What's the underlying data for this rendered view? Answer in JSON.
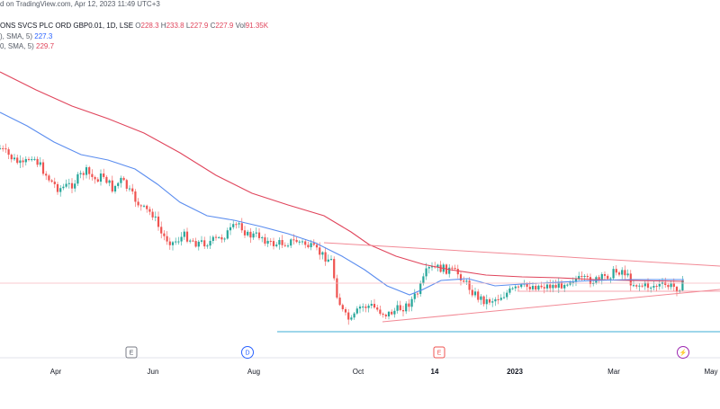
{
  "header": {
    "line1_prefix": "d on TradingView.com, Apr 12, 2023 11:49 UTC+3",
    "line2_symbol": "ONS SVCS PLC ORD GBP0.01, 1D, LSE",
    "open_label": "O",
    "open": "228.3",
    "high_label": "H",
    "high": "233.8",
    "low_label": "L",
    "low": "227.9",
    "close_label": "C",
    "close": "227.9",
    "vol_label": "Vol",
    "vol": "91.35K",
    "sma1_label": "), SMA, 5)",
    "sma1_value": "227.3",
    "sma2_label": "0, SMA, 5)",
    "sma2_value": "229.7"
  },
  "colors": {
    "up": "#26a69a",
    "down": "#ef5350",
    "sma_fast": "#5b8def",
    "sma_slow": "#e0455c",
    "trend": "#f28a96",
    "support": "#7ec8e3",
    "axis_text": "#131722",
    "lightning": "#9c27b0"
  },
  "chart_data": {
    "type": "candlestick",
    "x_tick_labels": [
      "Apr",
      "Jun",
      "Aug",
      "Oct",
      "14",
      "2023",
      "Mar",
      "May"
    ],
    "event_markers": [
      {
        "label": "E",
        "kind": "earnings"
      },
      {
        "label": "D",
        "kind": "dividend"
      },
      {
        "label": "E",
        "kind": "earnings"
      },
      {
        "label": "⚡",
        "kind": "split"
      }
    ],
    "series": [
      {
        "name": "price",
        "kind": "candles"
      },
      {
        "name": "SMA fast",
        "kind": "line",
        "last_value": 227.3
      },
      {
        "name": "SMA slow",
        "kind": "line",
        "last_value": 229.7
      }
    ]
  }
}
